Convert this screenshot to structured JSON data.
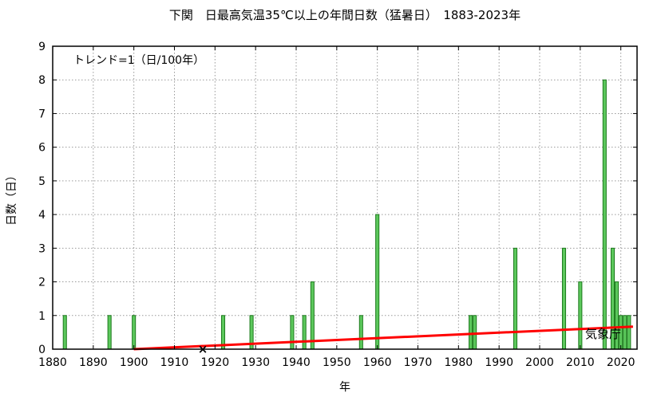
{
  "chart_data": {
    "type": "bar",
    "title": "下関　日最高気温35℃以上の年間日数（猛暑日）　1883-2023年",
    "xlabel": "年",
    "ylabel": "日数（日）",
    "annotation": "トレンド=1（日/100年）",
    "credit": "気象庁",
    "xlim": [
      1880,
      2024
    ],
    "ylim": [
      0,
      9
    ],
    "xticks": [
      1880,
      1890,
      1900,
      1910,
      1920,
      1930,
      1940,
      1950,
      1960,
      1970,
      1980,
      1990,
      2000,
      2010,
      2020
    ],
    "yticks": [
      0,
      1,
      2,
      3,
      4,
      5,
      6,
      7,
      8,
      9
    ],
    "grid": true,
    "bar_color": "#5cc85c",
    "bar_edge_color": "#1e7a1e",
    "trend_color": "#ff0000",
    "bars": [
      {
        "year": 1883,
        "value": 1
      },
      {
        "year": 1894,
        "value": 1
      },
      {
        "year": 1900,
        "value": 1
      },
      {
        "year": 1922,
        "value": 1
      },
      {
        "year": 1929,
        "value": 1
      },
      {
        "year": 1939,
        "value": 1
      },
      {
        "year": 1942,
        "value": 1
      },
      {
        "year": 1944,
        "value": 2
      },
      {
        "year": 1956,
        "value": 1
      },
      {
        "year": 1960,
        "value": 4
      },
      {
        "year": 1983,
        "value": 1
      },
      {
        "year": 1984,
        "value": 1
      },
      {
        "year": 1994,
        "value": 3
      },
      {
        "year": 2006,
        "value": 3
      },
      {
        "year": 2010,
        "value": 2
      },
      {
        "year": 2016,
        "value": 8
      },
      {
        "year": 2018,
        "value": 3
      },
      {
        "year": 2019,
        "value": 2
      },
      {
        "year": 2020,
        "value": 1
      },
      {
        "year": 2021,
        "value": 1
      },
      {
        "year": 2022,
        "value": 1
      }
    ],
    "trend": {
      "x": [
        1900,
        2023
      ],
      "y": [
        0,
        0.67
      ]
    },
    "missing_marker": {
      "year": 1917,
      "value": 0,
      "symbol": "×"
    }
  }
}
